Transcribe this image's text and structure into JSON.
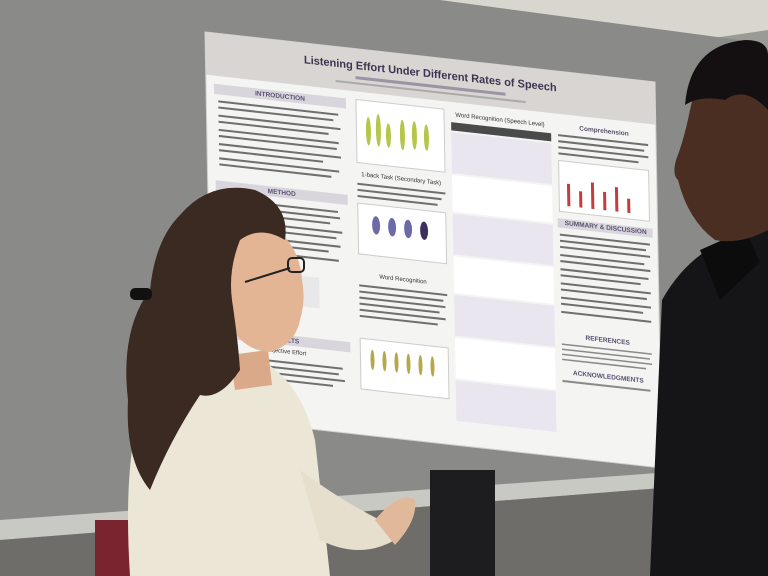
{
  "poster": {
    "title": "Listening Effort Under Different Rates of Speech",
    "sections": {
      "introduction": "INTRODUCTION",
      "method": "METHOD",
      "results": "RESULTS",
      "subjective_effort": "Subjective Effort",
      "one_back": "1-back Task (Secondary Task)",
      "word_recognition": "Word Recognition",
      "table_title": "Word Recognition (Speech Level)",
      "comprehension": "Comprehension",
      "summary": "SUMMARY & DISCUSSION",
      "references": "REFERENCES",
      "acknowledgments": "ACKNOWLEDGMENTS"
    }
  }
}
